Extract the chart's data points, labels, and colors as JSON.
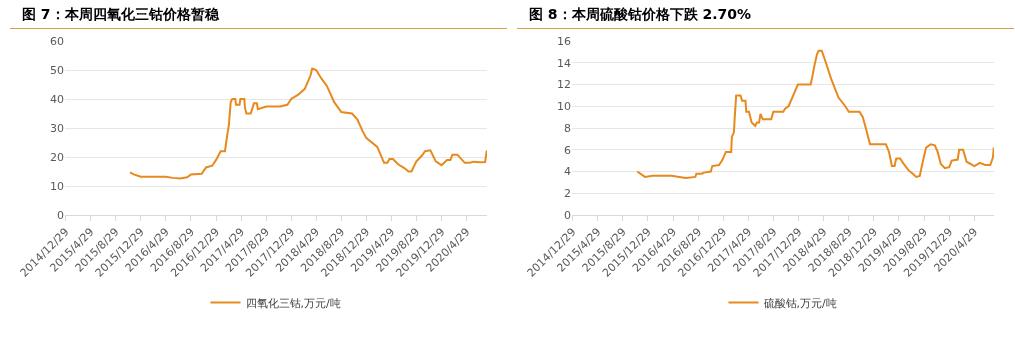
{
  "chart_data": [
    {
      "type": "line",
      "title": "图 7：本周四氧化三钴价格暂稳",
      "legend": "bottom",
      "grid": "y",
      "marker": "none",
      "xlim": [
        "2014-12-26",
        "2020-08-06"
      ],
      "ylim": [
        0,
        60
      ],
      "yticks": [
        0,
        10,
        20,
        30,
        40,
        50,
        60
      ],
      "xticks": [
        {
          "value": "2014-12-29",
          "label": "2014/12/29"
        },
        {
          "value": "2015-04-29",
          "label": "2015/4/29"
        },
        {
          "value": "2015-08-29",
          "label": "2015/8/29"
        },
        {
          "value": "2015-12-29",
          "label": "2015/12/29"
        },
        {
          "value": "2016-04-29",
          "label": "2016/4/29"
        },
        {
          "value": "2016-08-29",
          "label": "2016/8/29"
        },
        {
          "value": "2016-12-29",
          "label": "2016/12/29"
        },
        {
          "value": "2017-04-29",
          "label": "2017/4/29"
        },
        {
          "value": "2017-08-29",
          "label": "2017/8/29"
        },
        {
          "value": "2017-12-29",
          "label": "2017/12/29"
        },
        {
          "value": "2018-04-29",
          "label": "2018/4/29"
        },
        {
          "value": "2018-08-29",
          "label": "2018/8/29"
        },
        {
          "value": "2018-12-29",
          "label": "2018/12/29"
        },
        {
          "value": "2019-04-29",
          "label": "2019/4/29"
        },
        {
          "value": "2019-08-29",
          "label": "2019/8/29"
        },
        {
          "value": "2019-12-29",
          "label": "2019/12/29"
        },
        {
          "value": "2020-04-29",
          "label": "2020/4/29"
        }
      ],
      "series": [
        {
          "name": "四氧化三钴,万元/吨",
          "color": "#e8891d",
          "x": [
            "2015-11-07",
            "2015-11-25",
            "2015-12-29",
            "2016-04-29",
            "2016-06-01",
            "2016-07-08",
            "2016-08-10",
            "2016-08-29",
            "2016-10-20",
            "2016-11-10",
            "2016-12-10",
            "2016-12-29",
            "2017-01-20",
            "2017-02-10",
            "2017-02-20",
            "2017-03-01",
            "2017-03-10",
            "2017-03-18",
            "2017-04-01",
            "2017-04-05",
            "2017-04-22",
            "2017-04-26",
            "2017-05-15",
            "2017-05-18",
            "2017-05-25",
            "2017-06-15",
            "2017-06-22",
            "2017-07-01",
            "2017-07-15",
            "2017-07-20",
            "2017-08-29",
            "2017-11-05",
            "2017-12-10",
            "2017-12-29",
            "2018-02-01",
            "2018-03-05",
            "2018-04-01",
            "2018-04-10",
            "2018-04-29",
            "2018-05-25",
            "2018-06-20",
            "2018-07-25",
            "2018-08-29",
            "2018-10-20",
            "2018-11-15",
            "2018-12-10",
            "2018-12-29",
            "2019-02-20",
            "2019-03-25",
            "2019-04-10",
            "2019-04-20",
            "2019-05-07",
            "2019-06-01",
            "2019-07-05",
            "2019-07-22",
            "2019-08-05",
            "2019-08-29",
            "2019-09-25",
            "2019-10-10",
            "2019-11-05",
            "2019-12-01",
            "2019-12-29",
            "2020-01-25",
            "2020-02-10",
            "2020-02-20",
            "2020-03-15",
            "2020-04-20",
            "2020-05-15",
            "2020-06-01",
            "2020-07-05",
            "2020-07-28",
            "2020-08-05"
          ],
          "values": [
            14.7,
            14,
            13.2,
            13.2,
            12.8,
            12.6,
            13,
            14,
            14.2,
            16.4,
            17,
            19,
            22,
            22,
            27,
            31,
            39,
            40,
            40,
            38,
            38,
            40,
            40,
            37,
            35,
            35,
            36.5,
            38.5,
            38.5,
            36.5,
            37.4,
            37.4,
            38,
            40,
            41.5,
            43.5,
            48,
            50.5,
            50,
            47,
            44.5,
            39,
            35.5,
            35,
            33,
            29,
            26.5,
            23.5,
            18,
            18,
            19.3,
            19.3,
            17.5,
            16,
            15,
            15,
            18.5,
            20.5,
            22,
            22.3,
            18.5,
            17.2,
            19,
            19,
            20.8,
            20.8,
            18,
            18,
            18.4,
            18.2,
            18.3,
            22.3
          ]
        }
      ]
    },
    {
      "type": "line",
      "title": "图 8：本周硫酸钴价格下跌 2.70%",
      "legend": "bottom",
      "grid": "y",
      "marker": "none",
      "xlim": [
        "2014-12-26",
        "2020-08-02"
      ],
      "ylim": [
        0,
        16
      ],
      "yticks": [
        0,
        2,
        4,
        6,
        8,
        10,
        12,
        14,
        16
      ],
      "xticks": [
        {
          "value": "2014-12-29",
          "label": "2014/12/29"
        },
        {
          "value": "2015-04-29",
          "label": "2015/4/29"
        },
        {
          "value": "2015-08-29",
          "label": "2015/8/29"
        },
        {
          "value": "2015-12-29",
          "label": "2015/12/29"
        },
        {
          "value": "2016-04-29",
          "label": "2016/4/29"
        },
        {
          "value": "2016-08-29",
          "label": "2016/8/29"
        },
        {
          "value": "2016-12-29",
          "label": "2016/12/29"
        },
        {
          "value": "2017-04-29",
          "label": "2017/4/29"
        },
        {
          "value": "2017-08-29",
          "label": "2017/8/29"
        },
        {
          "value": "2017-12-29",
          "label": "2017/12/29"
        },
        {
          "value": "2018-04-29",
          "label": "2018/4/29"
        },
        {
          "value": "2018-08-29",
          "label": "2018/8/29"
        },
        {
          "value": "2018-12-29",
          "label": "2018/12/29"
        },
        {
          "value": "2019-04-29",
          "label": "2019/4/29"
        },
        {
          "value": "2019-08-29",
          "label": "2019/8/29"
        },
        {
          "value": "2019-12-29",
          "label": "2019/12/29"
        },
        {
          "value": "2020-04-29",
          "label": "2020/4/29"
        }
      ],
      "series": [
        {
          "name": "硫酸钴,万元/吨",
          "color": "#e8891d",
          "x": [
            "2015-11-07",
            "2015-12-15",
            "2016-01-20",
            "2016-04-22",
            "2016-05-28",
            "2016-07-01",
            "2016-08-15",
            "2016-08-20",
            "2016-09-15",
            "2016-09-25",
            "2016-10-29",
            "2016-11-05",
            "2016-12-08",
            "2016-12-25",
            "2017-01-10",
            "2017-02-05",
            "2017-02-08",
            "2017-02-18",
            "2017-02-22",
            "2017-03-01",
            "2017-03-22",
            "2017-03-30",
            "2017-04-15",
            "2017-04-19",
            "2017-05-02",
            "2017-05-15",
            "2017-06-01",
            "2017-06-10",
            "2017-06-20",
            "2017-06-27",
            "2017-07-08",
            "2017-08-18",
            "2017-08-28",
            "2017-10-15",
            "2017-10-25",
            "2017-11-10",
            "2017-11-28",
            "2017-12-25",
            "2018-02-25",
            "2018-03-05",
            "2018-03-16",
            "2018-03-28",
            "2018-04-05",
            "2018-04-20",
            "2018-05-10",
            "2018-06-05",
            "2018-07-10",
            "2018-08-12",
            "2018-08-29",
            "2018-10-20",
            "2018-11-05",
            "2018-11-15",
            "2018-12-10",
            "2019-02-25",
            "2019-03-12",
            "2019-03-26",
            "2019-04-08",
            "2019-04-16",
            "2019-05-05",
            "2019-05-22",
            "2019-06-15",
            "2019-07-05",
            "2019-07-22",
            "2019-08-08",
            "2019-08-25",
            "2019-09-08",
            "2019-09-30",
            "2019-10-20",
            "2019-11-03",
            "2019-11-18",
            "2019-12-08",
            "2019-12-29",
            "2020-01-10",
            "2020-02-08",
            "2020-02-15",
            "2020-03-05",
            "2020-03-22",
            "2020-04-29",
            "2020-05-25",
            "2020-06-20",
            "2020-07-15",
            "2020-07-28",
            "2020-08-01"
          ],
          "values": [
            4,
            3.5,
            3.6,
            3.6,
            3.5,
            3.4,
            3.5,
            3.8,
            3.8,
            3.9,
            4,
            4.5,
            4.6,
            5.1,
            5.8,
            5.8,
            7.2,
            7.6,
            9,
            11,
            11,
            10.5,
            10.5,
            9.5,
            9.5,
            8.5,
            8.2,
            8.5,
            8.5,
            9.3,
            8.8,
            8.8,
            9.5,
            9.5,
            9.8,
            10,
            10.8,
            12,
            12,
            12.7,
            13.8,
            14.8,
            15.1,
            15.1,
            14,
            12.5,
            10.8,
            10,
            9.5,
            9.5,
            9,
            8.3,
            6.5,
            6.5,
            5.8,
            4.5,
            4.5,
            5.2,
            5.2,
            4.7,
            4.1,
            3.8,
            3.5,
            3.6,
            5.1,
            6.2,
            6.5,
            6.4,
            5.8,
            4.7,
            4.3,
            4.4,
            5,
            5.1,
            6,
            6,
            4.9,
            4.5,
            4.8,
            4.6,
            4.6,
            5.3,
            6.2
          ]
        }
      ]
    }
  ]
}
